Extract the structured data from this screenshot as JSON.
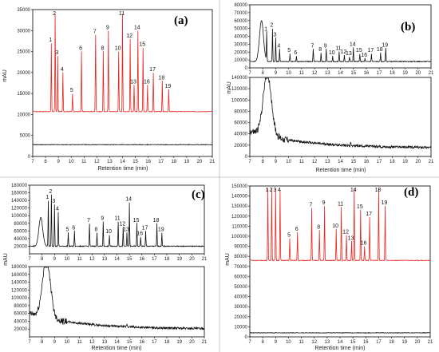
{
  "panels": [
    {
      "letter": "(a)",
      "ylabel": "mAU",
      "xlabel": "Retention time (min)",
      "xlim": [
        7,
        21
      ],
      "xticks": [
        7,
        8,
        9,
        10,
        11,
        12,
        13,
        14,
        15,
        16,
        17,
        18,
        19,
        20,
        21
      ],
      "ylim": [
        0,
        35000
      ],
      "yticks": [
        0,
        5000,
        10000,
        15000,
        20000,
        25000,
        30000,
        35000
      ],
      "yticklabels": [
        "0",
        "5000",
        "10000",
        "15000",
        "20000",
        "25000",
        "30000",
        "35000"
      ],
      "lower_has_axes": false,
      "upper_baseline": 10700,
      "upper_color": "#e8251f",
      "lower_baseline": 2800,
      "lower_color": "#111111",
      "peaks": [
        {
          "label": "1",
          "rt": 8.45,
          "top": 27000
        },
        {
          "label": "2",
          "rt": 8.75,
          "top": 34000
        },
        {
          "label": "3",
          "rt": 8.95,
          "top": 24000
        },
        {
          "label": "4",
          "rt": 9.35,
          "top": 20000
        },
        {
          "label": "5",
          "rt": 10.1,
          "top": 15000
        },
        {
          "label": "6",
          "rt": 10.8,
          "top": 25000
        },
        {
          "label": "7",
          "rt": 11.9,
          "top": 29000
        },
        {
          "label": "8",
          "rt": 12.5,
          "top": 25000
        },
        {
          "label": "9",
          "rt": 12.9,
          "top": 30000
        },
        {
          "label": "10",
          "rt": 13.7,
          "top": 25000
        },
        {
          "label": "11",
          "rt": 14.0,
          "top": 34000
        },
        {
          "label": "12",
          "rt": 14.6,
          "top": 28000
        },
        {
          "label": "13",
          "rt": 14.9,
          "top": 17000
        },
        {
          "label": "14",
          "rt": 15.2,
          "top": 30000
        },
        {
          "label": "15",
          "rt": 15.6,
          "top": 26000
        },
        {
          "label": "16",
          "rt": 15.95,
          "top": 17000
        },
        {
          "label": "17",
          "rt": 16.4,
          "top": 20000
        },
        {
          "label": "18",
          "rt": 17.1,
          "top": 18000
        },
        {
          "label": "19",
          "rt": 17.6,
          "top": 16000
        }
      ]
    },
    {
      "letter": "(b)",
      "ylabel": "mAU",
      "xlabel": "Retention time (min)",
      "xlim": [
        7,
        21
      ],
      "xticks": [
        7,
        8,
        9,
        10,
        11,
        12,
        13,
        14,
        15,
        16,
        17,
        18,
        19,
        20,
        21
      ],
      "ylim": [
        0,
        80000
      ],
      "yticks": [
        0,
        10000,
        20000,
        30000,
        40000,
        50000,
        60000,
        70000,
        80000
      ],
      "yticklabels": [
        "0",
        "10000",
        "20000",
        "30000",
        "40000",
        "50000",
        "60000",
        "70000",
        "80000"
      ],
      "lower_has_axes": true,
      "lower_ylim": [
        0,
        140000
      ],
      "lower_yticks": [
        0,
        20000,
        40000,
        60000,
        80000,
        100000,
        120000,
        140000
      ],
      "lower_yticklabels": [
        "0",
        "20000",
        "40000",
        "60000",
        "80000",
        "100000",
        "120000",
        "140000"
      ],
      "upper_baseline": 8000,
      "upper_color": "#111111",
      "lower_baseline": 15000,
      "lower_color": "#111111",
      "peaks": [
        {
          "label": "1",
          "rt": 8.3,
          "top": 45000
        },
        {
          "label": "2",
          "rt": 8.75,
          "top": 50000
        },
        {
          "label": "3",
          "rt": 9.0,
          "top": 38000
        },
        {
          "label": "4",
          "rt": 9.3,
          "top": 24000
        },
        {
          "label": "5",
          "rt": 10.1,
          "top": 18000
        },
        {
          "label": "6",
          "rt": 10.6,
          "top": 15000
        },
        {
          "label": "7",
          "rt": 11.9,
          "top": 24000
        },
        {
          "label": "8",
          "rt": 12.5,
          "top": 19000
        },
        {
          "label": "9",
          "rt": 12.9,
          "top": 24000
        },
        {
          "label": "10",
          "rt": 13.4,
          "top": 15000
        },
        {
          "label": "11",
          "rt": 13.9,
          "top": 21000
        },
        {
          "label": "12",
          "rt": 14.3,
          "top": 16000
        },
        {
          "label": "13",
          "rt": 14.7,
          "top": 14000
        },
        {
          "label": "14",
          "rt": 15.0,
          "top": 26000
        },
        {
          "label": "15",
          "rt": 15.5,
          "top": 18000
        },
        {
          "label": "16",
          "rt": 15.9,
          "top": 12000
        },
        {
          "label": "17",
          "rt": 16.4,
          "top": 18000
        },
        {
          "label": "18",
          "rt": 17.1,
          "top": 19000
        },
        {
          "label": "19",
          "rt": 17.5,
          "top": 25000
        }
      ]
    },
    {
      "letter": "(c)",
      "ylabel": "mAU",
      "xlabel": "Retention time (min)",
      "xlim": [
        7,
        21
      ],
      "xticks": [
        7,
        8,
        9,
        10,
        11,
        12,
        13,
        14,
        15,
        16,
        17,
        18,
        19,
        20,
        21
      ],
      "ylim": [
        0,
        180000
      ],
      "yticks": [
        20000,
        40000,
        60000,
        80000,
        100000,
        120000,
        140000,
        160000,
        180000
      ],
      "yticklabels": [
        "20000",
        "40000",
        "60000",
        "80000",
        "100000",
        "120000",
        "140000",
        "160000",
        "180000"
      ],
      "lower_has_axes": true,
      "lower_ylim": [
        0,
        180000
      ],
      "lower_yticks": [
        20000,
        40000,
        60000,
        80000,
        100000,
        120000,
        140000,
        160000,
        180000
      ],
      "lower_yticklabels": [
        "20000",
        "40000",
        "60000",
        "80000",
        "100000",
        "120000",
        "140000",
        "160000",
        "180000"
      ],
      "upper_baseline": 20000,
      "upper_color": "#111111",
      "lower_baseline": 20000,
      "lower_color": "#111111",
      "peaks": [
        {
          "label": "1",
          "rt": 8.5,
          "top": 140000
        },
        {
          "label": "2",
          "rt": 8.75,
          "top": 155000
        },
        {
          "label": "3",
          "rt": 9.0,
          "top": 130000
        },
        {
          "label": "4",
          "rt": 9.3,
          "top": 110000
        },
        {
          "label": "5",
          "rt": 10.1,
          "top": 55000
        },
        {
          "label": "6",
          "rt": 10.6,
          "top": 60000
        },
        {
          "label": "7",
          "rt": 11.8,
          "top": 80000
        },
        {
          "label": "8",
          "rt": 12.4,
          "top": 55000
        },
        {
          "label": "9",
          "rt": 12.9,
          "top": 85000
        },
        {
          "label": "10",
          "rt": 13.4,
          "top": 50000
        },
        {
          "label": "11",
          "rt": 14.1,
          "top": 85000
        },
        {
          "label": "12",
          "rt": 14.5,
          "top": 70000
        },
        {
          "label": "13",
          "rt": 14.8,
          "top": 55000
        },
        {
          "label": "14",
          "rt": 15.0,
          "top": 135000
        },
        {
          "label": "15",
          "rt": 15.6,
          "top": 80000
        },
        {
          "label": "16",
          "rt": 15.9,
          "top": 45000
        },
        {
          "label": "17",
          "rt": 16.3,
          "top": 60000
        },
        {
          "label": "18",
          "rt": 17.2,
          "top": 80000
        },
        {
          "label": "19",
          "rt": 17.6,
          "top": 55000
        }
      ]
    },
    {
      "letter": "(d)",
      "ylabel": "mAU",
      "xlabel": "Retention time (min)",
      "xlim": [
        7,
        21
      ],
      "xticks": [
        7,
        8,
        9,
        10,
        11,
        12,
        13,
        14,
        15,
        16,
        17,
        18,
        19,
        20,
        21
      ],
      "ylim": [
        0,
        150000
      ],
      "yticks": [
        0,
        10000,
        20000,
        30000,
        40000,
        50000,
        60000,
        70000,
        80000,
        90000,
        100000,
        110000,
        120000,
        130000,
        140000,
        150000
      ],
      "yticklabels": [
        "0",
        "10000",
        "20000",
        "30000",
        "40000",
        "50000",
        "60000",
        "70000",
        "80000",
        "90000",
        "100000",
        "110000",
        "120000",
        "130000",
        "140000",
        "150000"
      ],
      "lower_has_axes": false,
      "upper_baseline": 76000,
      "upper_color": "#e8251f",
      "lower_baseline": 4000,
      "lower_color": "#111111",
      "peaks": [
        {
          "label": "1",
          "rt": 8.4,
          "top": 148000
        },
        {
          "label": "2",
          "rt": 8.7,
          "top": 148000
        },
        {
          "label": "3",
          "rt": 9.0,
          "top": 148000
        },
        {
          "label": "4",
          "rt": 9.35,
          "top": 146000
        },
        {
          "label": "5",
          "rt": 10.1,
          "top": 98000
        },
        {
          "label": "6",
          "rt": 10.7,
          "top": 104000
        },
        {
          "label": "7",
          "rt": 11.8,
          "top": 128000
        },
        {
          "label": "8",
          "rt": 12.4,
          "top": 106000
        },
        {
          "label": "9",
          "rt": 12.8,
          "top": 130000
        },
        {
          "label": "10",
          "rt": 13.7,
          "top": 107000
        },
        {
          "label": "11",
          "rt": 14.1,
          "top": 129000
        },
        {
          "label": "12",
          "rt": 14.5,
          "top": 101000
        },
        {
          "label": "13",
          "rt": 14.9,
          "top": 95000
        },
        {
          "label": "14",
          "rt": 15.1,
          "top": 148000
        },
        {
          "label": "15",
          "rt": 15.6,
          "top": 126000
        },
        {
          "label": "16",
          "rt": 15.9,
          "top": 90000
        },
        {
          "label": "17",
          "rt": 16.3,
          "top": 119000
        },
        {
          "label": "18",
          "rt": 17.0,
          "top": 148000
        },
        {
          "label": "19",
          "rt": 17.5,
          "top": 130000
        }
      ]
    }
  ]
}
